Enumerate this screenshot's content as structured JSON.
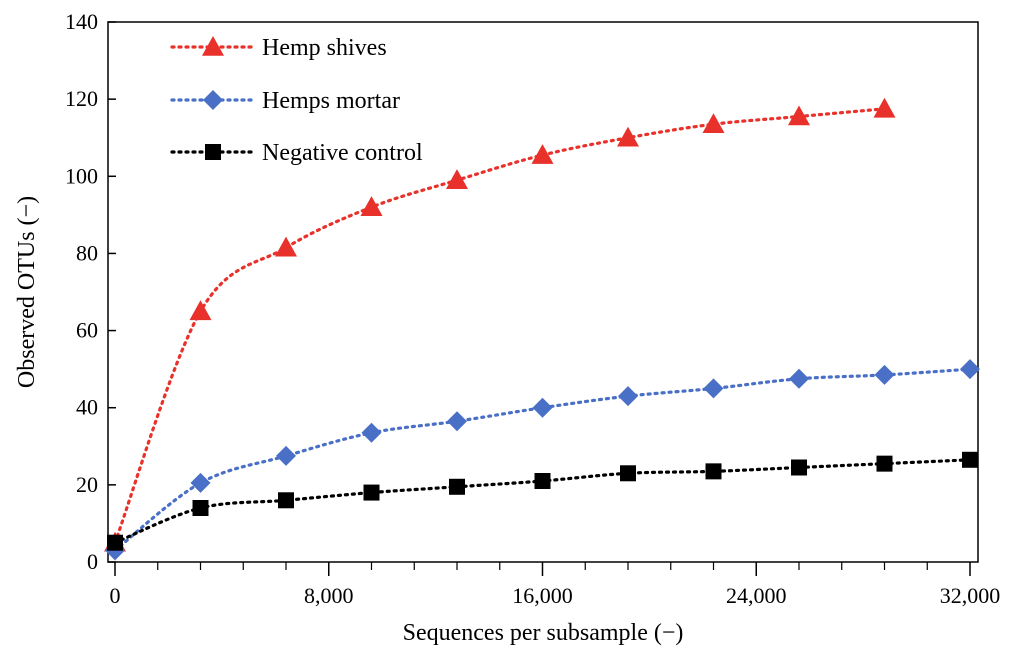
{
  "chart_data": {
    "type": "line",
    "xlabel": "Sequences per subsample (−)",
    "ylabel": "Observed OTUs (−)",
    "xlim": [
      0,
      32000
    ],
    "ylim": [
      0,
      140
    ],
    "xticks": [
      0,
      8000,
      16000,
      24000,
      32000
    ],
    "xtick_labels": [
      "0",
      "8,000",
      "16,000",
      "24,000",
      "32,000"
    ],
    "yticks": [
      0,
      20,
      40,
      60,
      80,
      100,
      120,
      140
    ],
    "ytick_labels": [
      "0",
      "20",
      "40",
      "60",
      "80",
      "100",
      "120",
      "140"
    ],
    "x_minor_step": 1600,
    "grid": false,
    "legend_position": "top-left",
    "series": [
      {
        "name": "Hemp shives",
        "color": "#e8312a",
        "marker": "triangle",
        "x": [
          0,
          3200,
          6400,
          9600,
          12800,
          16000,
          19200,
          22400,
          25600,
          28800
        ],
        "y": [
          5,
          65,
          81.5,
          92,
          99,
          105.5,
          110,
          113.5,
          115.5,
          117.5
        ]
      },
      {
        "name": "Hemps mortar",
        "color": "#4a6fc6",
        "marker": "diamond",
        "x": [
          0,
          3200,
          6400,
          9600,
          12800,
          16000,
          19200,
          22400,
          25600,
          28800,
          32000
        ],
        "y": [
          3,
          20.5,
          27.5,
          33.5,
          36.5,
          40,
          43,
          45,
          47.5,
          48.5,
          50
        ]
      },
      {
        "name": "Negative control",
        "color": "#000000",
        "marker": "square",
        "x": [
          0,
          3200,
          6400,
          9600,
          12800,
          16000,
          19200,
          22400,
          25600,
          28800,
          32000
        ],
        "y": [
          5,
          14,
          16,
          18,
          19.5,
          21,
          23,
          23.5,
          24.5,
          25.5,
          26.5
        ]
      }
    ]
  }
}
